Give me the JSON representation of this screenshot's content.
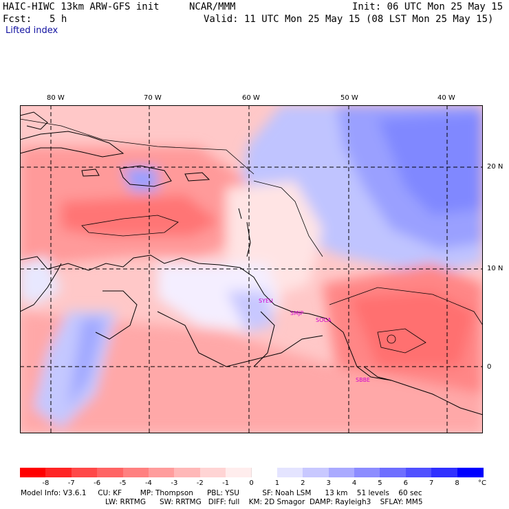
{
  "header": {
    "model_title": "HAIC-HIWC 13km ARW-GFS init",
    "org": "NCAR/MMM",
    "init": "Init: 06 UTC Mon 25 May 15",
    "fcst_label": "Fcst:",
    "fcst_value": "5 h",
    "valid": "Valid: 11 UTC Mon 25 May 15 (08 LST Mon 25 May 15)",
    "field": "Lifted index"
  },
  "map": {
    "lon_labels": [
      "80 W",
      "70 W",
      "60 W",
      "50 W",
      "40 W"
    ],
    "lat_labels": [
      "20 N",
      "10 N",
      "0"
    ],
    "stations": [
      {
        "id": "SYEU"
      },
      {
        "id": "SMJP"
      },
      {
        "id": "SOCA"
      },
      {
        "id": "SBBE"
      }
    ]
  },
  "colorbar": {
    "ticks": [
      "-8",
      "-7",
      "-6",
      "-5",
      "-4",
      "-3",
      "-2",
      "-1",
      "0",
      "1",
      "2",
      "3",
      "4",
      "5",
      "6",
      "7",
      "8"
    ],
    "unit": "°C",
    "colors": [
      "#ff0000",
      "#ff2424",
      "#ff4848",
      "#ff6464",
      "#ff8080",
      "#ff9c9c",
      "#ffb8b8",
      "#ffd4d4",
      "#ffeded",
      "#ffffff",
      "#e4e4ff",
      "#c8c8ff",
      "#aaaaff",
      "#8c8cff",
      "#6e6eff",
      "#5050ff",
      "#3030ff",
      "#0000ff"
    ]
  },
  "footer": {
    "line1": "Model Info: V3.6.1     CU: KF        MP: Thompson      PBL: YSU          SF: Noah LSM      13 km    51 levels    60 sec",
    "line2": "LW: RRTMG      SW: RRTMG   DIFF: full    KM: 2D Smagor  DAMP: Rayleigh3    SFLAY: MM5"
  }
}
